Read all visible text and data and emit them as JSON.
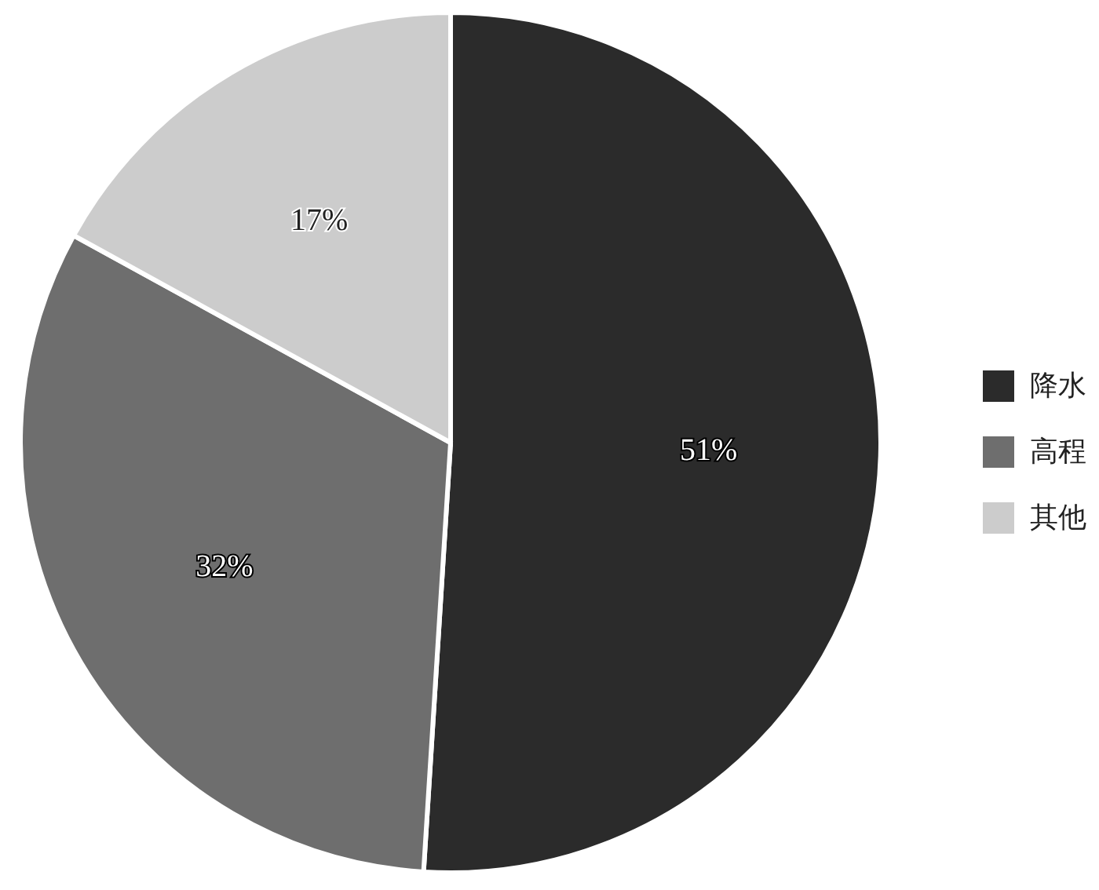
{
  "chart_data": {
    "type": "pie",
    "categories": [
      "降水",
      "高程",
      "其他"
    ],
    "values": [
      51,
      32,
      17
    ],
    "colors": [
      "#2b2b2b",
      "#6e6e6e",
      "#cccccc"
    ],
    "value_labels": [
      "51%",
      "32%",
      "17%"
    ],
    "legend": "right"
  }
}
